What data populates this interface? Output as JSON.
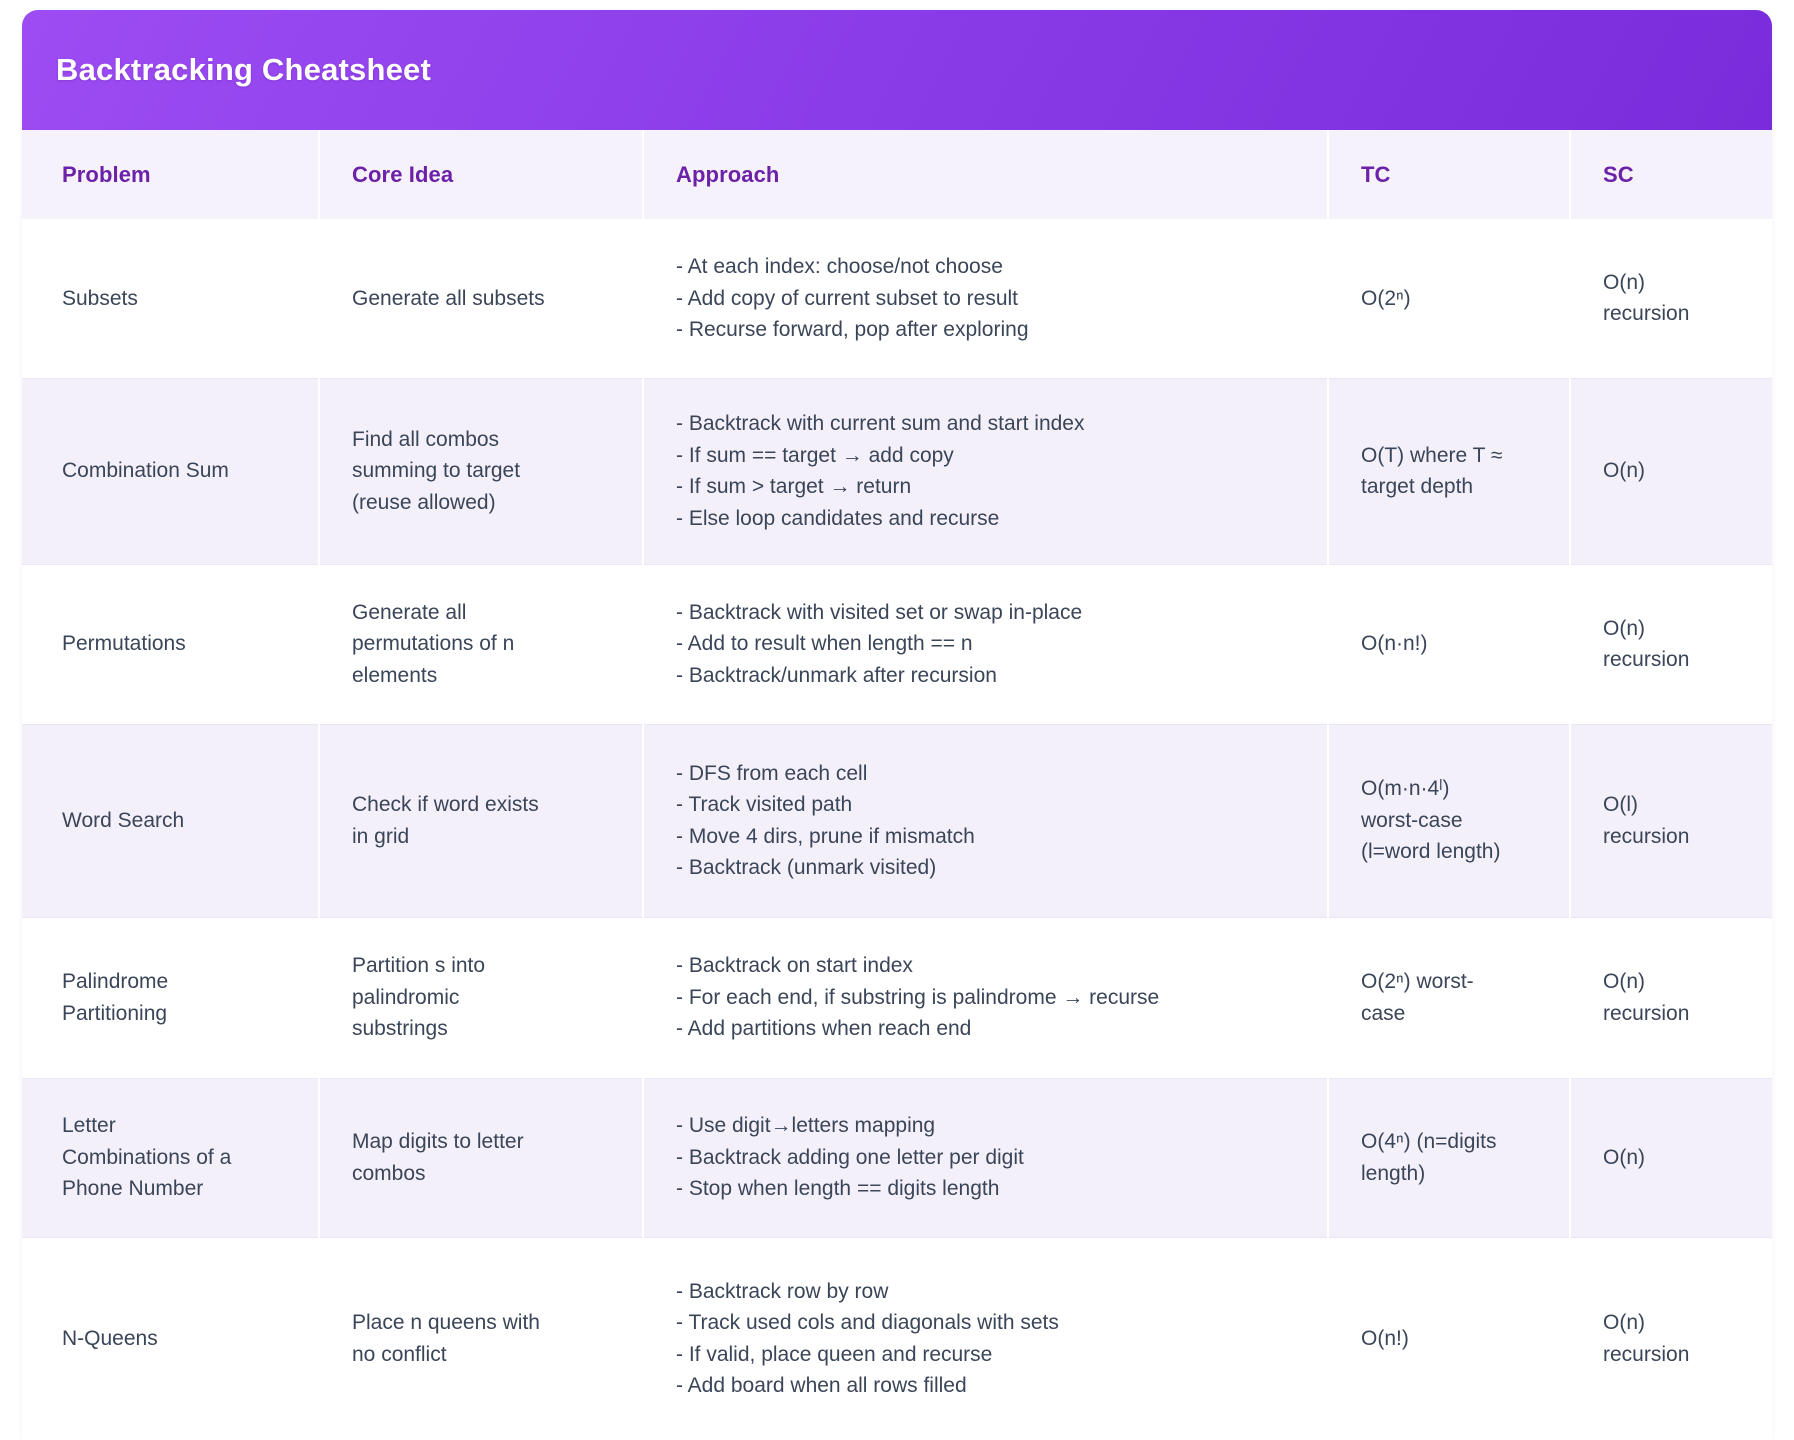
{
  "title": "Backtracking Cheatsheet",
  "theme": {
    "header_gradient_start": "#9d4cf2",
    "header_gradient_end": "#7a2cdc",
    "header_text_color": "#ffffff",
    "column_header_text_color": "#6b21a8",
    "column_header_bg": "#f5f2fb",
    "alt_row_bg": "#f4f0fa",
    "row_bg": "#ffffff",
    "body_text_color": "#3a4558"
  },
  "columns": [
    {
      "key": "problem",
      "label": "Problem"
    },
    {
      "key": "core_idea",
      "label": "Core Idea"
    },
    {
      "key": "approach",
      "label": "Approach"
    },
    {
      "key": "tc",
      "label": "TC"
    },
    {
      "key": "sc",
      "label": "SC"
    }
  ],
  "rows": [
    {
      "problem": "Subsets",
      "core_idea": "Generate all subsets",
      "approach": [
        "- At each index: choose/not choose",
        "- Add copy of current subset to result",
        "- Recurse forward, pop after exploring"
      ],
      "tc": "O(2ⁿ)",
      "sc": "O(n)\nrecursion"
    },
    {
      "problem": "Combination Sum",
      "core_idea": "Find all combos\nsumming to target\n(reuse allowed)",
      "approach": [
        "- Backtrack with current sum and start index",
        "- If sum == target → add copy",
        "- If sum > target → return",
        "- Else loop candidates and recurse"
      ],
      "tc": "O(T) where T ≈\ntarget depth",
      "sc": "O(n)"
    },
    {
      "problem": "Permutations",
      "core_idea": "Generate all\npermutations of n\nelements",
      "approach": [
        "- Backtrack with visited set or swap in-place",
        "- Add to result when length == n",
        "- Backtrack/unmark after recursion"
      ],
      "tc": "O(n·n!)",
      "sc": "O(n)\nrecursion"
    },
    {
      "problem": "Word Search",
      "core_idea": "Check if word exists\nin grid",
      "approach": [
        "- DFS from each cell",
        "- Track visited path",
        "- Move 4 dirs, prune if mismatch",
        "- Backtrack (unmark visited)"
      ],
      "tc": "O(m·n·4ˡ)\nworst-case\n(l=word length)",
      "sc": "O(l)\nrecursion"
    },
    {
      "problem": "Palindrome\nPartitioning",
      "core_idea": "Partition s into\npalindromic\nsubstrings",
      "approach": [
        "- Backtrack on start index",
        "- For each end, if substring is palindrome → recurse",
        "- Add partitions when reach end"
      ],
      "tc": "O(2ⁿ) worst-\ncase",
      "sc": "O(n)\nrecursion"
    },
    {
      "problem": "Letter\nCombinations of a\nPhone Number",
      "core_idea": "Map digits to letter\ncombos",
      "approach": [
        "- Use digit→letters mapping",
        "- Backtrack adding one letter per digit",
        "- Stop when length == digits length"
      ],
      "tc": "O(4ⁿ) (n=digits\nlength)",
      "sc": "O(n)"
    },
    {
      "problem": "N-Queens",
      "core_idea": "Place n queens with\nno conflict",
      "approach": [
        "- Backtrack row by row",
        "- Track used cols and diagonals with sets",
        "- If valid, place queen and recurse",
        "- Add board when all rows filled"
      ],
      "tc": "O(n!)",
      "sc": "O(n)\nrecursion"
    }
  ]
}
